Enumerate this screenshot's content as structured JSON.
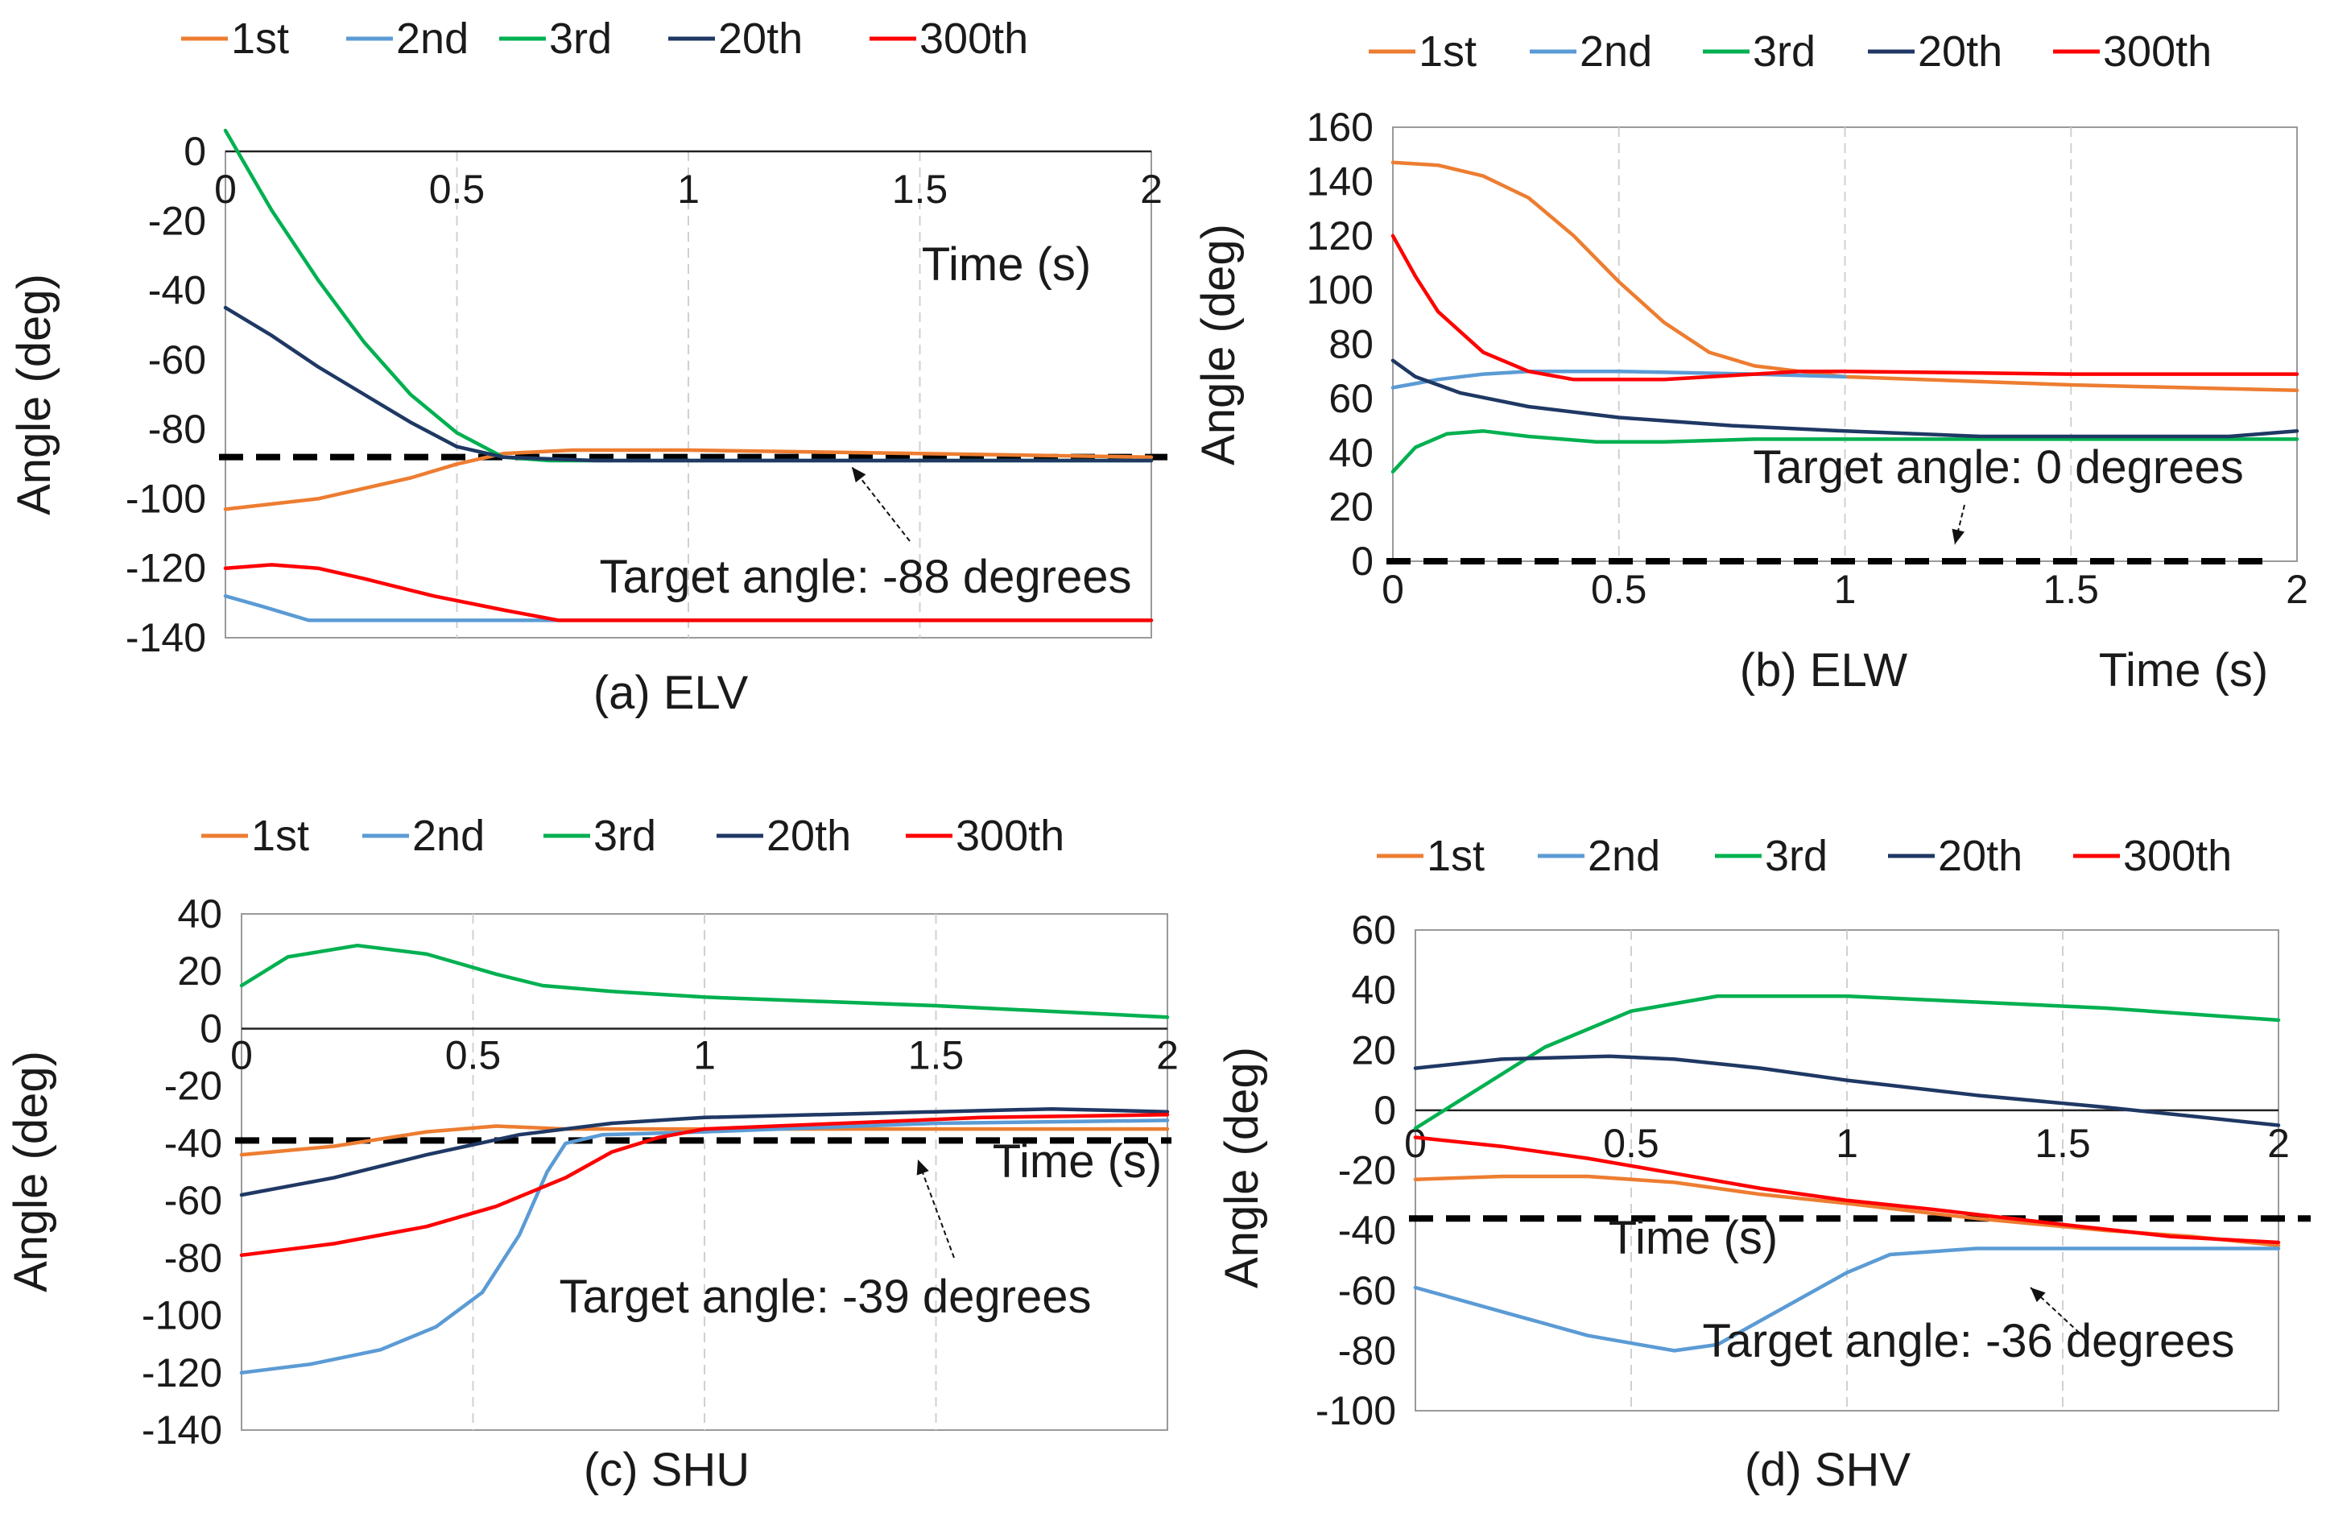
{
  "chart_data": [
    {
      "type": "line",
      "caption": "(a) ELV",
      "xlabel": "Time (s)",
      "ylabel": "Angle (deg)",
      "xlim": [
        0,
        2
      ],
      "ylim": [
        -140,
        0
      ],
      "xticks": [
        "0",
        "0.5",
        "1",
        "1.5",
        "2"
      ],
      "yticks": [
        "0",
        "-20",
        "-40",
        "-60",
        "-80",
        "-100",
        "-120",
        "-140"
      ],
      "grid": true,
      "legend": "top",
      "target": {
        "value": -88,
        "label": "Target angle: -88 degrees"
      },
      "series": [
        {
          "name": "1st",
          "color": "#ED7D31",
          "points": [
            [
              0,
              -103
            ],
            [
              0.2,
              -100
            ],
            [
              0.4,
              -94
            ],
            [
              0.5,
              -90
            ],
            [
              0.6,
              -87
            ],
            [
              0.75,
              -86
            ],
            [
              1.0,
              -86
            ],
            [
              1.5,
              -87
            ],
            [
              2.0,
              -88
            ]
          ]
        },
        {
          "name": "2nd",
          "color": "#5B9BD5",
          "points": [
            [
              0,
              -128
            ],
            [
              0.08,
              -131
            ],
            [
              0.18,
              -135
            ],
            [
              0.5,
              -135
            ],
            [
              1.0,
              -135
            ],
            [
              1.5,
              -135
            ],
            [
              2.0,
              -135
            ]
          ]
        },
        {
          "name": "3rd",
          "color": "#00B050",
          "points": [
            [
              0,
              6
            ],
            [
              0.1,
              -17
            ],
            [
              0.2,
              -37
            ],
            [
              0.3,
              -55
            ],
            [
              0.4,
              -70
            ],
            [
              0.5,
              -81
            ],
            [
              0.6,
              -88
            ],
            [
              0.7,
              -89
            ],
            [
              1.0,
              -89
            ],
            [
              1.5,
              -89
            ],
            [
              2.0,
              -89
            ]
          ]
        },
        {
          "name": "20th",
          "color": "#1F3864",
          "points": [
            [
              0,
              -45
            ],
            [
              0.1,
              -53
            ],
            [
              0.2,
              -62
            ],
            [
              0.3,
              -70
            ],
            [
              0.4,
              -78
            ],
            [
              0.5,
              -85
            ],
            [
              0.6,
              -88
            ],
            [
              0.8,
              -89
            ],
            [
              1.0,
              -89
            ],
            [
              1.5,
              -89
            ],
            [
              2.0,
              -89
            ]
          ]
        },
        {
          "name": "300th",
          "color": "#FF0000",
          "points": [
            [
              0,
              -120
            ],
            [
              0.1,
              -119
            ],
            [
              0.2,
              -120
            ],
            [
              0.3,
              -123
            ],
            [
              0.45,
              -128
            ],
            [
              0.6,
              -132
            ],
            [
              0.72,
              -135
            ],
            [
              1.0,
              -135
            ],
            [
              1.5,
              -135
            ],
            [
              2.0,
              -135
            ]
          ]
        }
      ]
    },
    {
      "type": "line",
      "caption": "(b) ELW",
      "xlabel": "Time (s)",
      "ylabel": "Angle (deg)",
      "xlim": [
        0,
        2
      ],
      "ylim": [
        0,
        160
      ],
      "xticks": [
        "0",
        "0.5",
        "1",
        "1.5",
        "2"
      ],
      "yticks": [
        "0",
        "20",
        "40",
        "60",
        "80",
        "100",
        "120",
        "140",
        "160"
      ],
      "grid": true,
      "legend": "top",
      "target": {
        "value": 0,
        "label": "Target angle: 0 degrees"
      },
      "series": [
        {
          "name": "1st",
          "color": "#ED7D31",
          "points": [
            [
              0,
              147
            ],
            [
              0.1,
              146
            ],
            [
              0.2,
              142
            ],
            [
              0.3,
              134
            ],
            [
              0.4,
              120
            ],
            [
              0.5,
              103
            ],
            [
              0.6,
              88
            ],
            [
              0.7,
              77
            ],
            [
              0.8,
              72
            ],
            [
              0.9,
              70
            ],
            [
              1.0,
              68
            ],
            [
              1.5,
              65
            ],
            [
              2.0,
              63
            ]
          ]
        },
        {
          "name": "2nd",
          "color": "#5B9BD5",
          "points": [
            [
              0,
              64
            ],
            [
              0.1,
              67
            ],
            [
              0.2,
              69
            ],
            [
              0.3,
              70
            ],
            [
              0.5,
              70
            ],
            [
              0.8,
              69
            ],
            [
              1.0,
              68
            ]
          ]
        },
        {
          "name": "3rd",
          "color": "#00B050",
          "points": [
            [
              0,
              33
            ],
            [
              0.05,
              42
            ],
            [
              0.12,
              47
            ],
            [
              0.2,
              48
            ],
            [
              0.3,
              46
            ],
            [
              0.45,
              44
            ],
            [
              0.6,
              44
            ],
            [
              0.8,
              45
            ],
            [
              1.0,
              45
            ],
            [
              1.5,
              45
            ],
            [
              2.0,
              45
            ]
          ]
        },
        {
          "name": "20th",
          "color": "#1F3864",
          "points": [
            [
              0,
              74
            ],
            [
              0.05,
              68
            ],
            [
              0.15,
              62
            ],
            [
              0.3,
              57
            ],
            [
              0.5,
              53
            ],
            [
              0.75,
              50
            ],
            [
              1.0,
              48
            ],
            [
              1.3,
              46
            ],
            [
              1.6,
              46
            ],
            [
              1.85,
              46
            ],
            [
              2.0,
              48
            ]
          ]
        },
        {
          "name": "300th",
          "color": "#FF0000",
          "points": [
            [
              0,
              120
            ],
            [
              0.05,
              105
            ],
            [
              0.1,
              92
            ],
            [
              0.2,
              77
            ],
            [
              0.3,
              70
            ],
            [
              0.4,
              67
            ],
            [
              0.6,
              67
            ],
            [
              0.8,
              69
            ],
            [
              0.9,
              70
            ],
            [
              1.0,
              70
            ],
            [
              1.5,
              69
            ],
            [
              2.0,
              69
            ]
          ]
        }
      ]
    },
    {
      "type": "line",
      "caption": "(c) SHU",
      "xlabel": "Time (s)",
      "ylabel": "Angle (deg)",
      "xlim": [
        0,
        2
      ],
      "ylim": [
        -140,
        40
      ],
      "xticks": [
        "0",
        "0.5",
        "1",
        "1.5",
        "2"
      ],
      "yticks": [
        "40",
        "20",
        "0",
        "-20",
        "-40",
        "-60",
        "-80",
        "-100",
        "-120",
        "-140"
      ],
      "grid": true,
      "legend": "top",
      "target": {
        "value": -39,
        "label": "Target angle: -39 degrees"
      },
      "series": [
        {
          "name": "1st",
          "color": "#ED7D31",
          "points": [
            [
              0,
              -44
            ],
            [
              0.2,
              -41
            ],
            [
              0.4,
              -36
            ],
            [
              0.55,
              -34
            ],
            [
              0.7,
              -35
            ],
            [
              1.0,
              -35
            ],
            [
              1.5,
              -35
            ],
            [
              2.0,
              -35
            ]
          ]
        },
        {
          "name": "2nd",
          "color": "#5B9BD5",
          "points": [
            [
              0,
              -120
            ],
            [
              0.15,
              -117
            ],
            [
              0.3,
              -112
            ],
            [
              0.42,
              -104
            ],
            [
              0.52,
              -92
            ],
            [
              0.6,
              -72
            ],
            [
              0.66,
              -50
            ],
            [
              0.7,
              -40
            ],
            [
              0.78,
              -37
            ],
            [
              1.0,
              -36
            ],
            [
              1.5,
              -33
            ],
            [
              2.0,
              -32
            ]
          ]
        },
        {
          "name": "3rd",
          "color": "#00B050",
          "points": [
            [
              0,
              15
            ],
            [
              0.1,
              25
            ],
            [
              0.25,
              29
            ],
            [
              0.4,
              26
            ],
            [
              0.55,
              19
            ],
            [
              0.65,
              15
            ],
            [
              0.8,
              13
            ],
            [
              1.0,
              11
            ],
            [
              1.5,
              8
            ],
            [
              2.0,
              4
            ]
          ]
        },
        {
          "name": "20th",
          "color": "#1F3864",
          "points": [
            [
              0,
              -58
            ],
            [
              0.2,
              -52
            ],
            [
              0.4,
              -44
            ],
            [
              0.6,
              -37
            ],
            [
              0.8,
              -33
            ],
            [
              1.0,
              -31
            ],
            [
              1.5,
              -29
            ],
            [
              1.75,
              -28
            ],
            [
              2.0,
              -29
            ]
          ]
        },
        {
          "name": "300th",
          "color": "#FF0000",
          "points": [
            [
              0,
              -79
            ],
            [
              0.2,
              -75
            ],
            [
              0.4,
              -69
            ],
            [
              0.55,
              -62
            ],
            [
              0.7,
              -52
            ],
            [
              0.8,
              -43
            ],
            [
              0.9,
              -38
            ],
            [
              1.0,
              -35
            ],
            [
              1.3,
              -33
            ],
            [
              1.6,
              -31
            ],
            [
              2.0,
              -30
            ]
          ]
        }
      ]
    },
    {
      "type": "line",
      "caption": "(d) SHV",
      "xlabel": "Time (s)",
      "ylabel": "Angle (deg)",
      "xlim": [
        0,
        2
      ],
      "ylim": [
        -100,
        60
      ],
      "xticks": [
        "0",
        "0.5",
        "1",
        "1.5",
        "2"
      ],
      "yticks": [
        "60",
        "40",
        "20",
        "0",
        "-20",
        "-40",
        "-60",
        "-80",
        "-100"
      ],
      "grid": true,
      "legend": "top",
      "target": {
        "value": -36,
        "label": "Target angle: -36 degrees"
      },
      "series": [
        {
          "name": "1st",
          "color": "#ED7D31",
          "points": [
            [
              0,
              -23
            ],
            [
              0.2,
              -22
            ],
            [
              0.4,
              -22
            ],
            [
              0.6,
              -24
            ],
            [
              0.8,
              -28
            ],
            [
              1.0,
              -31
            ],
            [
              1.3,
              -36
            ],
            [
              1.6,
              -40
            ],
            [
              1.8,
              -42
            ],
            [
              2.0,
              -45
            ]
          ]
        },
        {
          "name": "2nd",
          "color": "#5B9BD5",
          "points": [
            [
              0,
              -59
            ],
            [
              0.2,
              -67
            ],
            [
              0.4,
              -75
            ],
            [
              0.6,
              -80
            ],
            [
              0.7,
              -78
            ],
            [
              0.85,
              -66
            ],
            [
              1.0,
              -54
            ],
            [
              1.1,
              -48
            ],
            [
              1.3,
              -46
            ],
            [
              1.6,
              -46
            ],
            [
              2.0,
              -46
            ]
          ]
        },
        {
          "name": "3rd",
          "color": "#00B050",
          "points": [
            [
              0,
              -6
            ],
            [
              0.1,
              3
            ],
            [
              0.3,
              21
            ],
            [
              0.5,
              33
            ],
            [
              0.7,
              38
            ],
            [
              1.0,
              38
            ],
            [
              1.3,
              36
            ],
            [
              1.6,
              34
            ],
            [
              2.0,
              30
            ]
          ]
        },
        {
          "name": "20th",
          "color": "#1F3864",
          "points": [
            [
              0,
              14
            ],
            [
              0.2,
              17
            ],
            [
              0.45,
              18
            ],
            [
              0.6,
              17
            ],
            [
              0.8,
              14
            ],
            [
              1.0,
              10
            ],
            [
              1.3,
              5
            ],
            [
              1.6,
              1
            ],
            [
              1.8,
              -2
            ],
            [
              2.0,
              -5
            ]
          ]
        },
        {
          "name": "300th",
          "color": "#FF0000",
          "points": [
            [
              0,
              -9
            ],
            [
              0.2,
              -12
            ],
            [
              0.4,
              -16
            ],
            [
              0.6,
              -21
            ],
            [
              0.8,
              -26
            ],
            [
              1.0,
              -30
            ],
            [
              1.2,
              -33
            ],
            [
              1.5,
              -38
            ],
            [
              1.75,
              -42
            ],
            [
              2.0,
              -44
            ]
          ]
        }
      ]
    }
  ]
}
